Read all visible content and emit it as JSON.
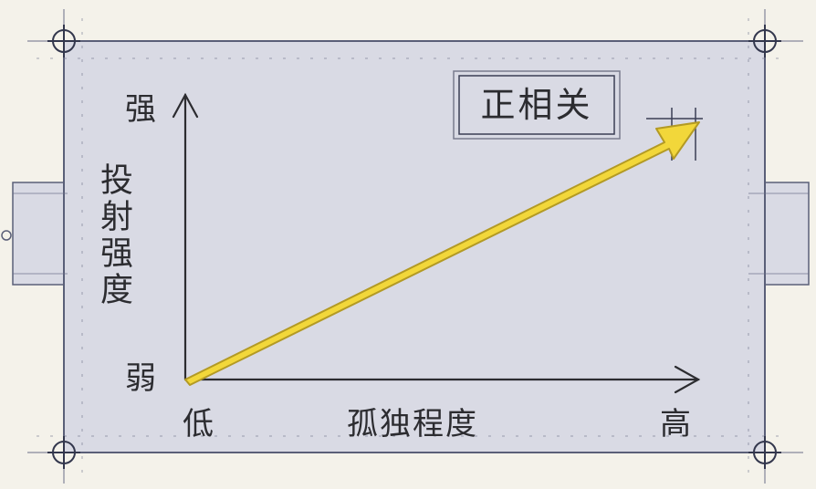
{
  "diagram": {
    "y_axis": {
      "title": "投射强度",
      "high_label": "强",
      "low_label": "弱"
    },
    "x_axis": {
      "title": "孤独程度",
      "low_label": "低",
      "high_label": "高"
    },
    "relation_label": "正相关"
  },
  "colors": {
    "paper": "#f4f2ea",
    "board": "#d9dae4",
    "ink": "#2c2c30",
    "arrow_fill": "#f2d73a",
    "arrow_edge": "#b39a24"
  }
}
